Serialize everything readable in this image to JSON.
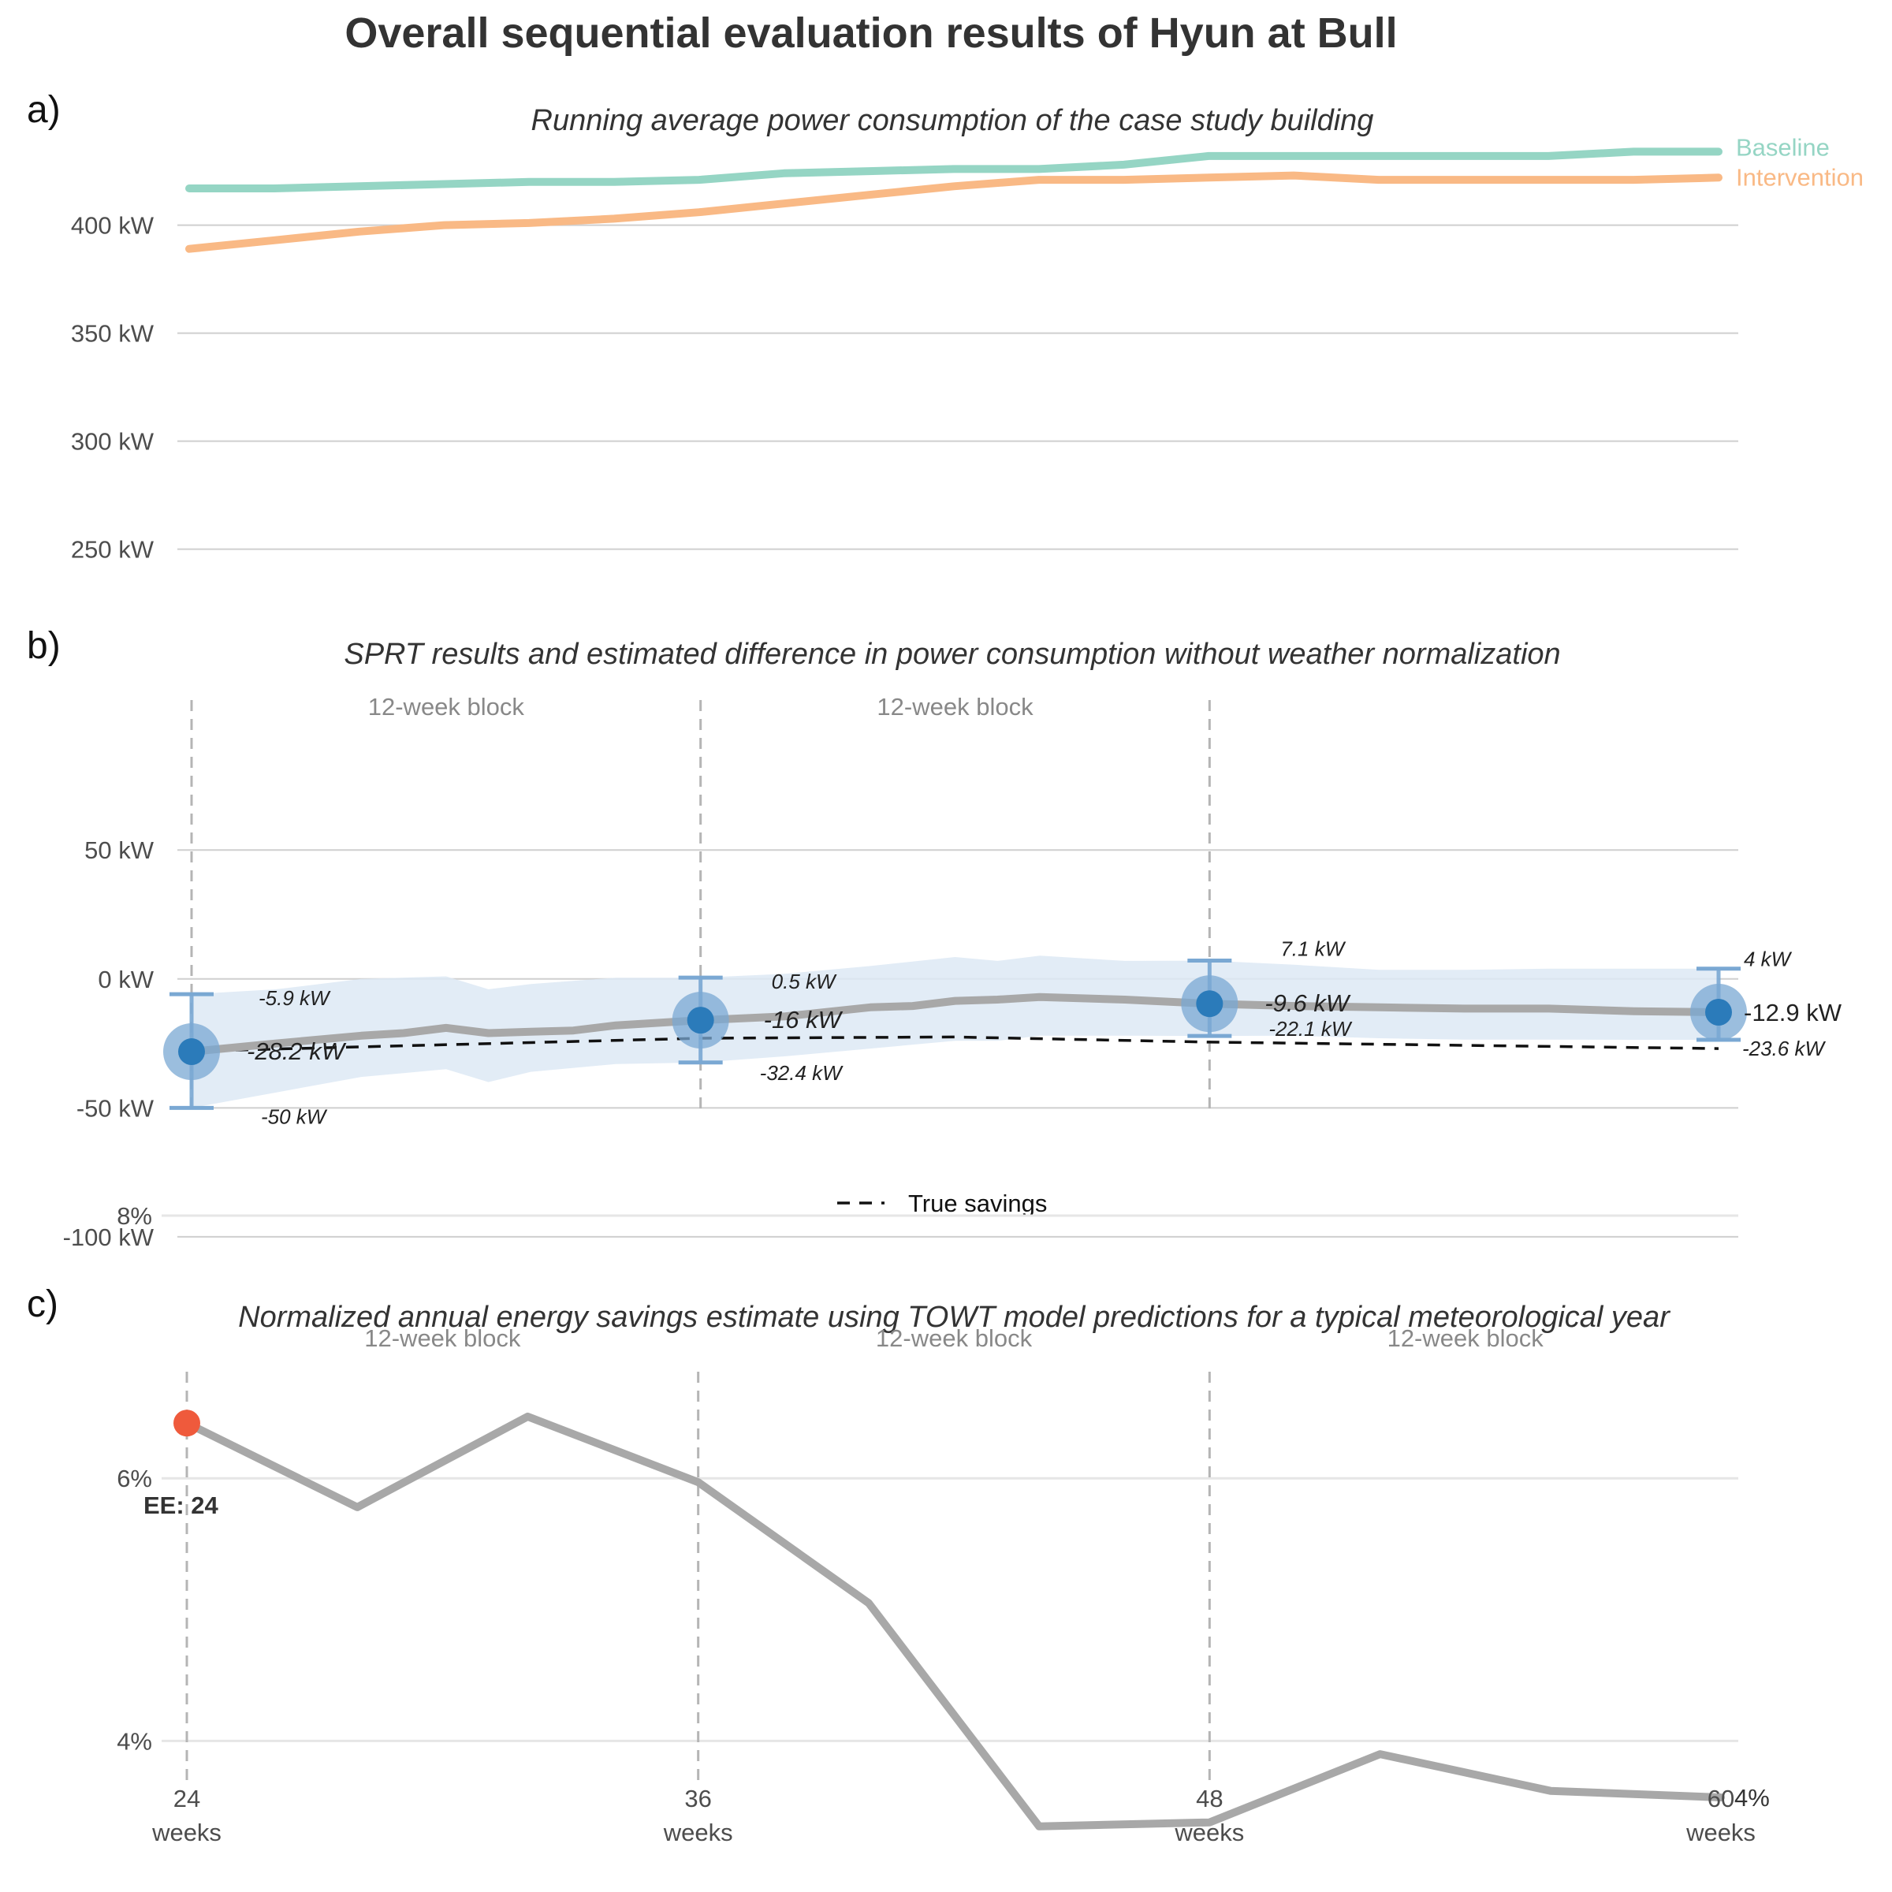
{
  "title": "Overall sequential evaluation results of Hyun at Bull",
  "colors": {
    "baseline": "#95d5c4",
    "intervention": "#f9b985",
    "estimate_line": "#a8a8a8",
    "point": "#2b7bba",
    "point_halo": "#7aa8d3",
    "ci_band": "#dde9f4",
    "true_savings": "#111111",
    "ee_point": "#ef5a3c"
  },
  "chart_data": [
    {
      "panel": "a)",
      "type": "line",
      "subtitle": "Running average power consumption of the case study building",
      "x_range": [
        24,
        60
      ],
      "ylim": [
        240,
        440
      ],
      "y_ticks": [
        250,
        300,
        350,
        400
      ],
      "y_tick_labels": [
        "250 kW",
        "300 kW",
        "350 kW",
        "400 kW"
      ],
      "x": [
        24,
        26,
        28,
        30,
        32,
        34,
        36,
        38,
        40,
        42,
        44,
        46,
        48,
        50,
        52,
        54,
        56,
        58,
        60
      ],
      "series": [
        {
          "name": "Baseline",
          "key": "baseline",
          "values": [
            417,
            417,
            418,
            419,
            420,
            420,
            421,
            424,
            425,
            426,
            426,
            428,
            432,
            432,
            432,
            432,
            432,
            434,
            434
          ]
        },
        {
          "name": "Intervention",
          "key": "intervention",
          "values": [
            389,
            393,
            397,
            400,
            401,
            403,
            406,
            410,
            414,
            418,
            421,
            421,
            422,
            423,
            421,
            421,
            421,
            421,
            422
          ]
        }
      ]
    },
    {
      "panel": "b)",
      "type": "line",
      "subtitle": "SPRT results and estimated difference in power consumption without weather normalization",
      "x_range": [
        24,
        60
      ],
      "ylim": [
        -115,
        95
      ],
      "y_ticks": [
        -100,
        -50,
        0,
        50
      ],
      "y_tick_labels": [
        "-100 kW",
        "-50 kW",
        "0 kW",
        "50 kW"
      ],
      "block_lines": [
        24,
        36,
        48
      ],
      "block_labels": [
        "12-week block",
        "12-week block"
      ],
      "estimate": {
        "x": [
          24,
          26,
          28,
          29,
          30,
          31,
          32,
          33,
          34,
          36,
          38,
          40,
          41,
          42,
          43,
          44,
          46,
          48,
          50,
          52,
          54,
          56,
          58,
          60
        ],
        "values": [
          -28.2,
          -25,
          -22,
          -21,
          -19,
          -21,
          -20.5,
          -20,
          -18,
          -16,
          -14.5,
          -11,
          -10.5,
          -8.5,
          -8,
          -7,
          -8,
          -9.6,
          -10.5,
          -11,
          -11.5,
          -11.5,
          -12.5,
          -12.9
        ]
      },
      "ci_band": {
        "x": [
          24,
          26,
          28,
          30,
          31,
          32,
          34,
          36,
          38,
          40,
          42,
          43,
          44,
          46,
          48,
          50,
          52,
          54,
          56,
          58,
          60
        ],
        "upper": [
          -5.9,
          -4,
          0,
          1,
          -4,
          -2,
          0.5,
          0.5,
          2,
          5,
          8.5,
          7,
          9,
          7,
          7.1,
          5.5,
          3.5,
          3.5,
          4,
          4,
          4
        ],
        "lower": [
          -50,
          -44,
          -38,
          -35,
          -40,
          -36,
          -33,
          -32.4,
          -30,
          -27,
          -24,
          -24,
          -22,
          -22,
          -22.1,
          -22,
          -23,
          -23.5,
          -23.5,
          -23.6,
          -23.6
        ]
      },
      "true_savings": {
        "x": [
          24,
          36,
          42,
          48,
          60
        ],
        "values": [
          -28,
          -23,
          -22.5,
          -24.5,
          -27
        ]
      },
      "tests": [
        {
          "x": 24,
          "estimate": -28.2,
          "upper": -5.9,
          "lower": -50,
          "estimate_label": "-28.2 kW",
          "upper_label": "-5.9 kW",
          "lower_label": "-50 kW"
        },
        {
          "x": 36,
          "estimate": -16,
          "upper": 0.5,
          "lower": -32.4,
          "estimate_label": "-16 kW",
          "upper_label": "0.5 kW",
          "lower_label": "-32.4 kW"
        },
        {
          "x": 48,
          "estimate": -9.6,
          "upper": 7.1,
          "lower": -22.1,
          "estimate_label": "-9.6 kW",
          "upper_label": "7.1 kW",
          "lower_label": "-22.1 kW"
        },
        {
          "x": 60,
          "estimate": -12.9,
          "upper": 4,
          "lower": -23.6,
          "estimate_label": "-12.9 kW",
          "upper_label": "4 kW",
          "lower_label": "-23.6 kW"
        }
      ],
      "legend": {
        "label": "True savings",
        "position": "bottom"
      }
    },
    {
      "panel": "c)",
      "type": "line",
      "subtitle": "Normalized annual energy savings estimate using TOWT model predictions for a typical meteorological year",
      "x_range": [
        24,
        60
      ],
      "ylim": [
        3.0,
        8.0
      ],
      "y_ticks": [
        4,
        6,
        8
      ],
      "y_tick_labels": [
        "4%",
        "6%",
        "8%"
      ],
      "block_lines": [
        24,
        36,
        48
      ],
      "block_labels": [
        "12-week block",
        "12-week block",
        "12-week block"
      ],
      "x": [
        24,
        28,
        32,
        36,
        40,
        44,
        48,
        52,
        56,
        60
      ],
      "values": [
        6.42,
        5.78,
        6.47,
        5.97,
        5.05,
        3.35,
        3.38,
        3.9,
        3.62,
        3.57
      ],
      "end_label": "4%",
      "ee": {
        "x": 24,
        "value": 6.42,
        "label": "EE: 24"
      },
      "x_ticks": [
        24,
        36,
        48,
        60
      ],
      "x_tick_labels": [
        "24",
        "36",
        "48",
        "60"
      ],
      "x_tick_unit": "weeks"
    }
  ]
}
